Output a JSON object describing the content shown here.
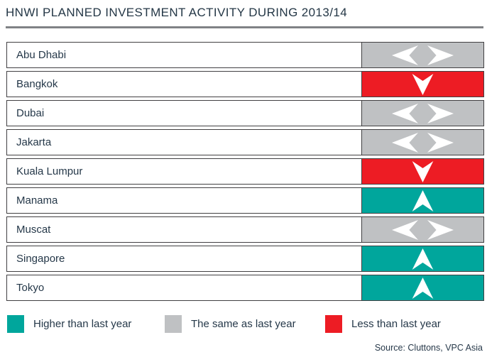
{
  "title": "HNWI PLANNED INVESTMENT ACTIVITY DURING 2013/14",
  "colors": {
    "higher": "#00A69C",
    "same": "#BFC1C3",
    "less": "#ED1C24"
  },
  "rows": [
    {
      "city": "Abu Dhabi",
      "status": "same"
    },
    {
      "city": "Bangkok",
      "status": "less"
    },
    {
      "city": "Dubai",
      "status": "same"
    },
    {
      "city": "Jakarta",
      "status": "same"
    },
    {
      "city": "Kuala Lumpur",
      "status": "less"
    },
    {
      "city": "Manama",
      "status": "higher"
    },
    {
      "city": "Muscat",
      "status": "same"
    },
    {
      "city": "Singapore",
      "status": "higher"
    },
    {
      "city": "Tokyo",
      "status": "higher"
    }
  ],
  "legend": {
    "items": [
      {
        "label": "Higher than last year",
        "color": "#00A69C",
        "icon": "up-arrow-icon"
      },
      {
        "label": "The same as last year",
        "color": "#BFC1C3",
        "icon": "left-right-arrow-icon"
      },
      {
        "label": "Less than last year",
        "color": "#ED1C24",
        "icon": "down-arrow-icon"
      }
    ]
  },
  "source": "Source: Cluttons, VPC Asia",
  "chart_data": {
    "type": "table",
    "title": "HNWI PLANNED INVESTMENT ACTIVITY DURING 2013/14",
    "categories": [
      "Abu Dhabi",
      "Bangkok",
      "Dubai",
      "Jakarta",
      "Kuala Lumpur",
      "Manama",
      "Muscat",
      "Singapore",
      "Tokyo"
    ],
    "values": [
      "same",
      "less",
      "same",
      "same",
      "less",
      "higher",
      "same",
      "higher",
      "higher"
    ],
    "value_labels": {
      "higher": "Higher than last year",
      "same": "The same as last year",
      "less": "Less than last year"
    },
    "legend_position": "bottom",
    "source": "Source: Cluttons, VPC Asia"
  }
}
